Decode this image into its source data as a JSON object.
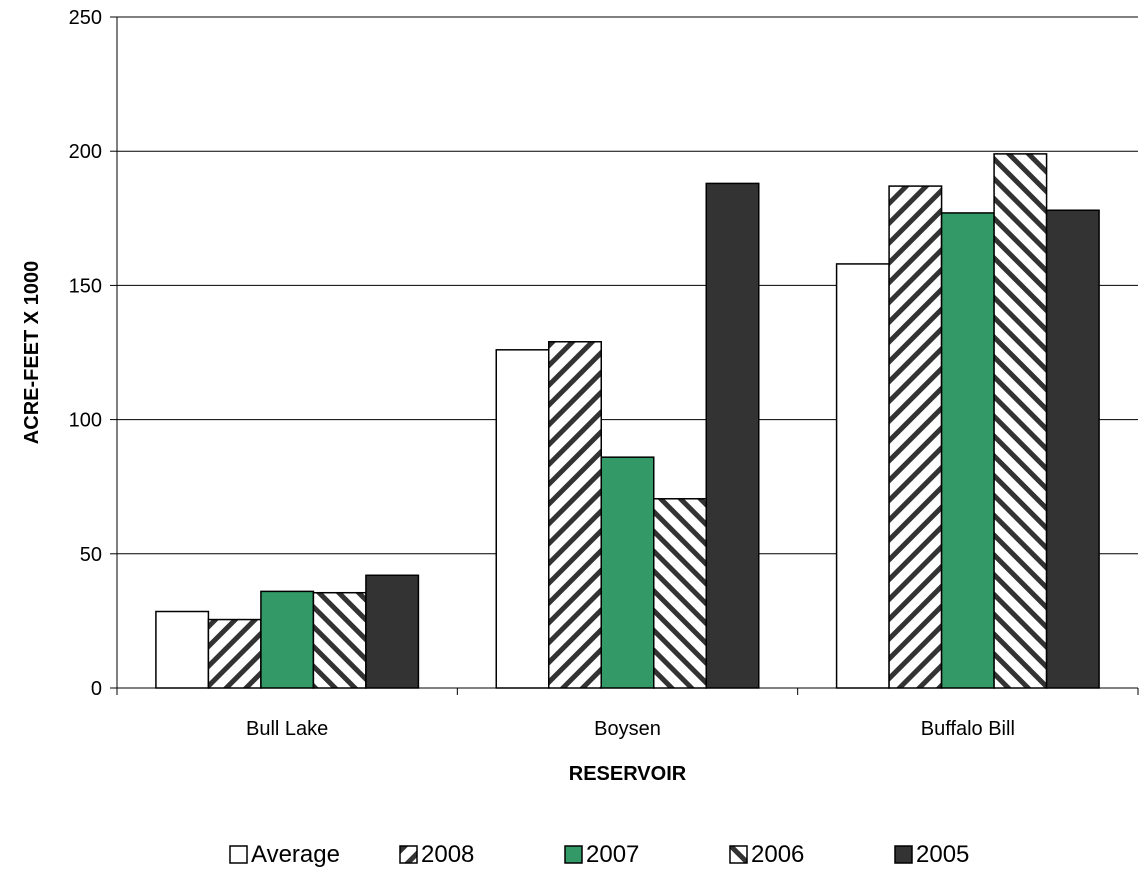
{
  "chart_data": {
    "type": "bar",
    "title": "",
    "xlabel": "RESERVOIR",
    "ylabel": "ACRE-FEET X 1000",
    "categories": [
      "Bull Lake",
      "Boysen",
      "Buffalo Bill"
    ],
    "ylim": [
      0,
      250
    ],
    "yticks": [
      0,
      50,
      100,
      150,
      200,
      250
    ],
    "grid": true,
    "legend_position": "bottom",
    "series": [
      {
        "name": "Average",
        "values": [
          28.5,
          126,
          158
        ],
        "color": "#ffffff",
        "pattern": "solid"
      },
      {
        "name": "2008",
        "values": [
          25.5,
          129,
          187
        ],
        "color": "#ffffff",
        "pattern": "hatch-forward"
      },
      {
        "name": "2007",
        "values": [
          36,
          86,
          177
        ],
        "color": "#339966",
        "pattern": "solid"
      },
      {
        "name": "2006",
        "values": [
          35.5,
          70.5,
          199
        ],
        "color": "#ffffff",
        "pattern": "hatch-backward"
      },
      {
        "name": "2005",
        "values": [
          42,
          188,
          178
        ],
        "color": "#333333",
        "pattern": "solid"
      }
    ]
  }
}
